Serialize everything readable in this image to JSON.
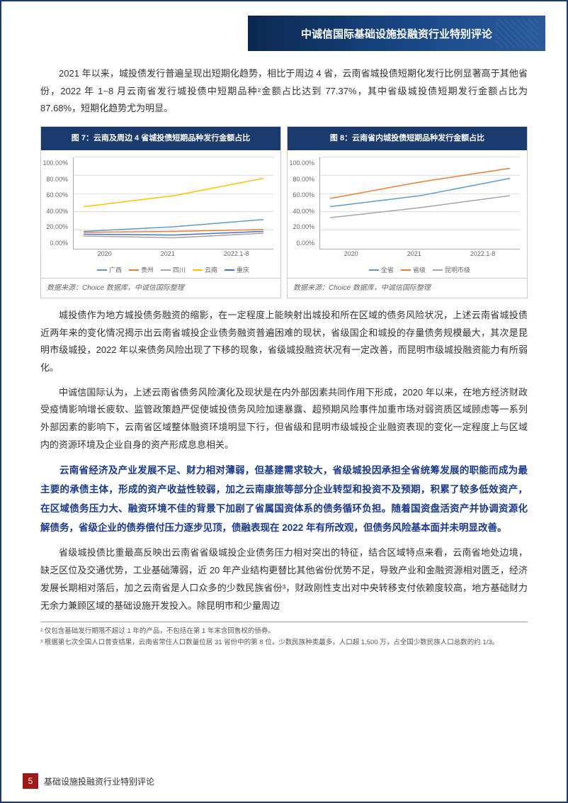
{
  "header": {
    "banner_text": "中诚信国际基础设施投融资行业特别评论"
  },
  "para1": "2021 年以来，城投债发行普遍呈现出短期化趋势，相比于周边 4 省，云南省城投债短期化发行比例显著高于其他省份，2022 年 1~8 月云南省发行城投债中短期品种²金额占比达到 77.37%，其中省级城投债短期发行金额占比为 87.68%，短期化趋势尤为明显。",
  "chart7": {
    "title": "图 7：云南及周边 4 省城投债短期品种发行金额占比",
    "source": "数据来源：Choice 数据库，中诚信国际整理",
    "type": "line",
    "categories": [
      "2020",
      "2021",
      "2022.1-8"
    ],
    "ylim": [
      0,
      100
    ],
    "ytick_step": 20,
    "y_suffix": "%",
    "background_color": "#ffffff",
    "grid_color": "#e0e0e0",
    "series": [
      {
        "name": "广西",
        "color": "#5b9bd5",
        "values": [
          19,
          24,
          32
        ]
      },
      {
        "name": "贵州",
        "color": "#ed7d31",
        "values": [
          18,
          19,
          21
        ]
      },
      {
        "name": "四川",
        "color": "#a5a5a5",
        "values": [
          14,
          12,
          17
        ]
      },
      {
        "name": "云南",
        "color": "#ffc000",
        "values": [
          46,
          58,
          77
        ]
      },
      {
        "name": "重庆",
        "color": "#4472c4",
        "values": [
          16,
          15,
          19
        ]
      }
    ]
  },
  "chart8": {
    "title": "图 8：云南省内城投债短期品种发行金额占比",
    "source": "数据来源：Choice 数据库，中诚信国际整理",
    "type": "line",
    "categories": [
      "2020",
      "2021",
      "2022.1-8"
    ],
    "ylim": [
      0,
      100
    ],
    "ytick_step": 20,
    "y_suffix": "%",
    "background_color": "#ffffff",
    "grid_color": "#e0e0e0",
    "series": [
      {
        "name": "全省",
        "color": "#5b9bd5",
        "values": [
          46,
          58,
          77
        ]
      },
      {
        "name": "省级",
        "color": "#ed7d31",
        "values": [
          55,
          73,
          88
        ]
      },
      {
        "name": "昆明市级",
        "color": "#a5a5a5",
        "values": [
          34,
          45,
          58
        ]
      }
    ]
  },
  "para2": "城投债作为地方城投债务融资的缩影，在一定程度上能映射出城投和所在区域的债务风险状况，上述云南省城投债近两年来的变化情况揭示出云南省城投企业债务融资普遍困难的现状，省级国企和城投的存量债务规模最大，其次是昆明市级城投，2022 年以来债务风险出现了下移的现象，省级城投融资状况有一定改善，而昆明市级城投融资能力有所弱化。",
  "para3": "中诚信国际认为，上述云南省债务风险演化及现状是在内外部因素共同作用下形成，2020 年以来，在地方经济财政受疫情影响增长疲软、监管政策趋严促使城投债务风险加速暴露、超预期风险事件加重市场对弱资质区域顾虑等一系列外部因素的影响下，云南省区域整体融资环境明显下行，但省级和昆明市级城投企业融资表现的变化一定程度上与区域内的资源环境及企业自身的资产形成息息相关。",
  "highlight": "云南省经济及产业发展不足、财力相对薄弱，但基建需求较大，省级城投因承担全省统筹发展的职能而成为最主要的承债主体，形成的资产收益性较弱，加之云南康旅等部分企业转型和投资不及预期，积累了较多低效资产，在区域债务压力大、融资环境不佳的背景下加剧了省属国资体系的债务循环负担。随着国资盘活资产并协调资源化解债务，省级企业的债券偿付压力逐步见顶，债融表现在 2022 年有所改观，但债务风险基本面并未明显改善。",
  "para4": "省级城投债比重最高反映出云南省省级城投企业债务压力相对突出的特征，结合区域特点来看，云南省地处边境，缺乏区位及交通优势，工业基础薄弱，近 20 年产业结构更替比其他省份优势不足，导致产业和金融资源相对匮乏，经济发展长期相对落后，加之云南省是人口众多的少数民族省份³，财政刚性支出对中央转移支付依赖度较高，地方基础财力无余力兼顾区域的基础设施开发投入。除昆明市和少量周边",
  "footnotes": {
    "fn2": "² 仅包含基础发行期限不超过 1 年的产品，不包括在第 1 年末含回售权的债券。",
    "fn3": "³ 根据第七次全国人口普查结果，云南省常住人口数量位居 31 省份中的第 8 位，少数民族种类最多，人口超 1,500 万，占全国少数民族人口总数的约 1/3。"
  },
  "footer": {
    "page": "5",
    "text": "基础设施投融资行业特别评论"
  }
}
